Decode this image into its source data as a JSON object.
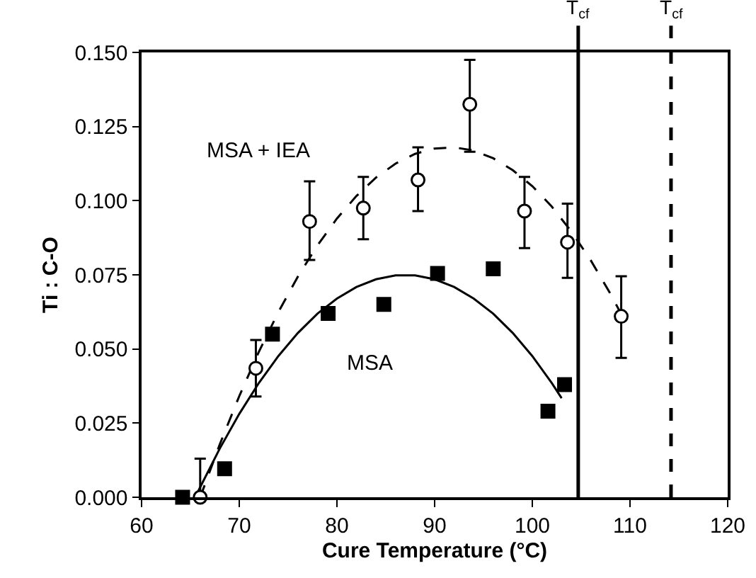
{
  "chart_data": {
    "type": "scatter",
    "xlabel": "Cure Temperature (°C)",
    "ylabel": "Ti : C-O",
    "xlim": [
      60,
      120
    ],
    "xticks": [
      60,
      70,
      80,
      90,
      100,
      110,
      120
    ],
    "ylim": [
      0,
      0.15
    ],
    "yticks": [
      {
        "value": 0,
        "label": "0.000"
      },
      {
        "value": 0.025,
        "label": "0.025"
      },
      {
        "value": 0.05,
        "label": "0.050"
      },
      {
        "value": 0.075,
        "label": "0.075"
      },
      {
        "value": 0.1,
        "label": "0.100"
      },
      {
        "value": 0.125,
        "label": "0.125"
      },
      {
        "value": 0.15,
        "label": "0.150"
      }
    ],
    "grid": false,
    "series": [
      {
        "type": "line",
        "color": "#000000",
        "line_style": "dashed",
        "marker": "none",
        "x": [
          66,
          68,
          70,
          72,
          74,
          76,
          78,
          80,
          82,
          84,
          86,
          88,
          90,
          92,
          94,
          96,
          98,
          100,
          102,
          104,
          106,
          108,
          109
        ],
        "values": [
          0.0,
          0.0178,
          0.0341,
          0.049,
          0.0624,
          0.0744,
          0.0849,
          0.094,
          0.1016,
          0.1078,
          0.1125,
          0.1158,
          0.1176,
          0.118,
          0.1169,
          0.1143,
          0.1103,
          0.1049,
          0.098,
          0.0896,
          0.0798,
          0.0686,
          0.0624
        ]
      },
      {
        "type": "line",
        "color": "#000000",
        "line_style": "solid",
        "marker": "none",
        "x": [
          65.5,
          66,
          68,
          70,
          72,
          74,
          76,
          78,
          80,
          82,
          84,
          86,
          88,
          90,
          92,
          94,
          96,
          98,
          100,
          102,
          103
        ],
        "values": [
          0.0,
          0.0034,
          0.0164,
          0.0281,
          0.0385,
          0.0476,
          0.0554,
          0.0619,
          0.067,
          0.0709,
          0.0735,
          0.0748,
          0.0748,
          0.0735,
          0.0709,
          0.067,
          0.0619,
          0.0554,
          0.0476,
          0.0385,
          0.0334
        ]
      },
      {
        "color": "#000000",
        "marker": "square",
        "x": [
          64.2,
          68.5,
          73.4,
          79.1,
          84.8,
          90.3,
          96,
          101.6,
          103.3
        ],
        "values": [
          0,
          0.0096,
          0.055,
          0.062,
          0.065,
          0.0755,
          0.077,
          0.029,
          0.038
        ]
      },
      {
        "color": "#000000",
        "marker": "circle",
        "x": [
          66,
          71.7,
          77.2,
          82.7,
          88.3,
          93.6,
          99.2,
          103.6,
          109.1
        ],
        "values": [
          0,
          0.0435,
          0.093,
          0.0975,
          0.107,
          0.1325,
          0.0965,
          0.086,
          0.061
        ],
        "errors": [
          [
            0,
            0.013
          ],
          [
            0.034,
            0.053
          ],
          [
            0.08,
            0.1065
          ],
          [
            0.087,
            0.108
          ],
          [
            0.0965,
            0.118
          ],
          [
            0.1165,
            0.1475
          ],
          [
            0.084,
            0.108
          ],
          [
            0.074,
            0.099
          ],
          [
            0.047,
            0.0745
          ]
        ]
      }
    ],
    "ref_lines": [
      {
        "axis": "x",
        "value": 104.7,
        "label": "T$_{cf}$",
        "color": "#000000",
        "line_style": "solid"
      },
      {
        "axis": "x",
        "value": 114.2,
        "label": "T$_{cf}$",
        "color": "#000000",
        "line_style": "dashed"
      }
    ],
    "annotations": [
      "MSA + IEA",
      "MSA"
    ]
  }
}
